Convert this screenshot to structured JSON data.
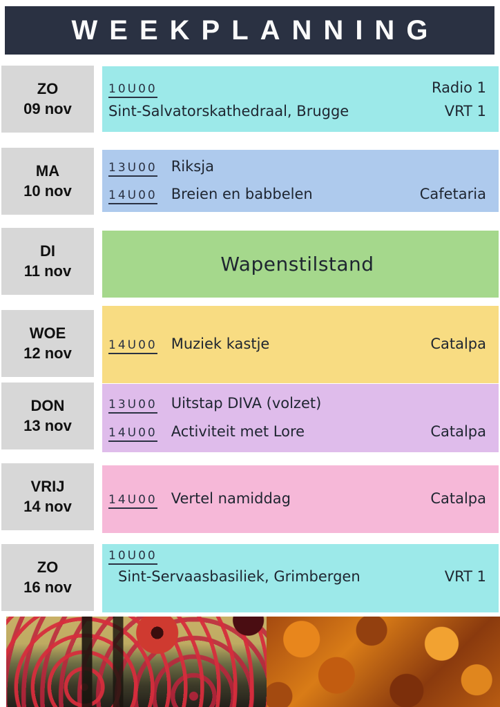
{
  "title": "WEEKPLANNING",
  "colors": {
    "header_bg": "#2a3142",
    "day_bg": "#d7d7d7",
    "text": "#1e2530",
    "cyan": "#9ce9e9",
    "blue": "#aecaed",
    "green": "#a5d88c",
    "yellow": "#f8dc82",
    "purple": "#dfbceb",
    "pink": "#f6b8d8"
  },
  "rows": [
    {
      "day": "ZO",
      "date": "09 nov",
      "color": "cyan",
      "time1": "10U00",
      "right1": "Radio 1",
      "text2": "Sint-Salvatorskathedraal, Brugge",
      "right2": "VRT 1"
    },
    {
      "day": "MA",
      "date": "10 nov",
      "color": "blue",
      "time1": "13U00",
      "event1": "Riksja",
      "time2": "14U00",
      "event2": "Breien en babbelen",
      "right2": "Cafetaria"
    },
    {
      "day": "DI",
      "date": "11 nov",
      "color": "green",
      "event": "Wapenstilstand"
    },
    {
      "day": "WOE",
      "date": "12 nov",
      "color": "yellow",
      "time1": "14U00",
      "event1": "Muziek kastje",
      "right1": "Catalpa"
    },
    {
      "day": "DON",
      "date": "13 nov",
      "color": "purple",
      "time1": "13U00",
      "event1": "Uitstap DIVA (volzet)",
      "time2": "14U00",
      "event2": "Activiteit met Lore",
      "right2": "Catalpa"
    },
    {
      "day": "VRIJ",
      "date": "14 nov",
      "color": "pink",
      "time1": "14U00",
      "event1": "Vertel namiddag",
      "right1": "Catalpa"
    },
    {
      "day": "ZO",
      "date": "16 nov",
      "color": "cyan",
      "time1": "10U00",
      "text2": "Sint-Servaasbasiliek, Grimbergen",
      "right2": "VRT 1"
    }
  ],
  "photos": {
    "left": "poppy-field-photo",
    "right": "autumn-leaves-photo"
  }
}
